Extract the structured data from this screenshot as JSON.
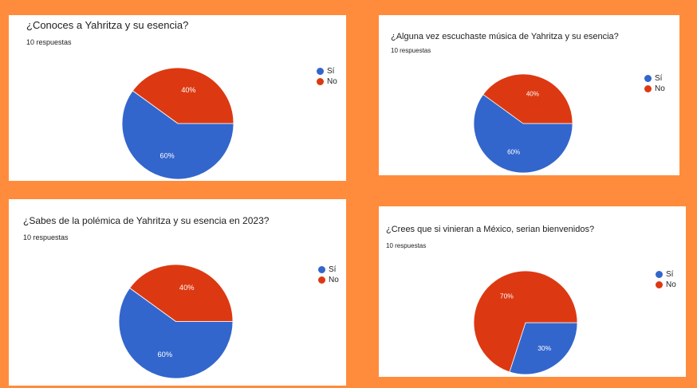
{
  "colors": {
    "si": "#3366cc",
    "no": "#dc3912",
    "slice_border": "#ffffff"
  },
  "chart_data": [
    {
      "type": "pie",
      "title": "¿Conoces a Yahritza y su esencia?",
      "subtitle": "10 respuestas",
      "categories": [
        "Sí",
        "No"
      ],
      "values": [
        60,
        40
      ],
      "labels": [
        "60%",
        "40%"
      ],
      "legend_position": "right"
    },
    {
      "type": "pie",
      "title": "¿Alguna vez escuchaste música de Yahritza y su esencia?",
      "subtitle": "10 respuestas",
      "categories": [
        "Sí",
        "No"
      ],
      "values": [
        60,
        40
      ],
      "labels": [
        "60%",
        "40%"
      ],
      "legend_position": "right"
    },
    {
      "type": "pie",
      "title": "¿Sabes de la polémica de Yahritza y su esencia en 2023?",
      "subtitle": "10 respuestas",
      "categories": [
        "Sí",
        "No"
      ],
      "values": [
        60,
        40
      ],
      "labels": [
        "60%",
        "40%"
      ],
      "legend_position": "right"
    },
    {
      "type": "pie",
      "title": "¿Crees que si vinieran a México, serian bienvenidos?",
      "subtitle": "10 respuestas",
      "categories": [
        "Sí",
        "No"
      ],
      "values": [
        30,
        70
      ],
      "labels": [
        "30%",
        "70%"
      ],
      "legend_position": "right"
    }
  ]
}
